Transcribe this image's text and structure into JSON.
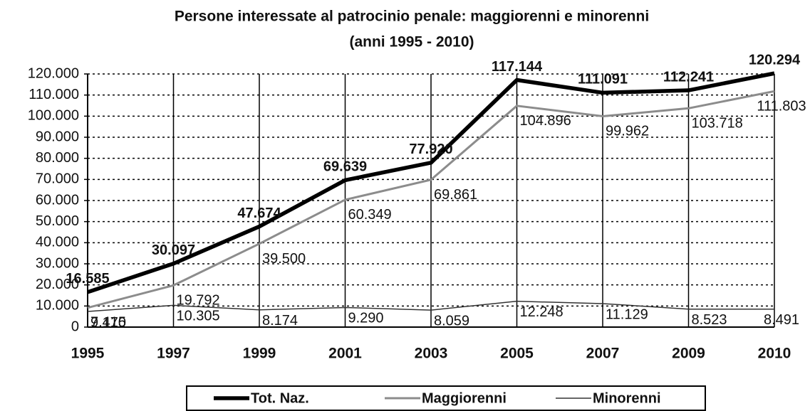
{
  "chart_data": {
    "type": "line",
    "title": "Persone interessate al patrocinio penale: maggiorenni e minorenni",
    "subtitle": "(anni 1995 - 2010)",
    "categories": [
      "1995",
      "1997",
      "1999",
      "2001",
      "2003",
      "2005",
      "2007",
      "2009",
      "2010"
    ],
    "series": [
      {
        "name": "Tot. Naz.",
        "color": "#000000",
        "values": [
          16585,
          30097,
          47674,
          69639,
          77920,
          117144,
          111091,
          112241,
          120294
        ],
        "value_labels": [
          "16.585",
          "30.097",
          "47.674",
          "69.639",
          "77.920",
          "117.144",
          "111.091",
          "112.241",
          "120.294"
        ]
      },
      {
        "name": "Maggiorenni",
        "color": "#8c8c8c",
        "values": [
          9170,
          19792,
          39500,
          60349,
          69861,
          104896,
          99962,
          103718,
          111803
        ],
        "value_labels": [
          "9.170",
          "19.792",
          "39.500",
          "60.349",
          "69.861",
          "104.896",
          "99.962",
          "103.718",
          "111.803"
        ]
      },
      {
        "name": "Minorenni",
        "color": "#333333",
        "values": [
          7415,
          10305,
          8174,
          9290,
          8059,
          12248,
          11129,
          8523,
          8491
        ],
        "value_labels": [
          "7.415",
          "10.305",
          "8.174",
          "9.290",
          "8.059",
          "12.248",
          "11.129",
          "8.523",
          "8.491"
        ]
      }
    ],
    "ylim": [
      0,
      120000
    ],
    "yticks": [
      0,
      {
        "value": 10000,
        "label": "10.000"
      },
      {
        "value": 20000,
        "label": "20.000"
      },
      {
        "value": 30000,
        "label": "30.000"
      },
      {
        "value": 40000,
        "label": "40.000"
      },
      {
        "value": 50000,
        "label": "50.000"
      },
      {
        "value": 60000,
        "label": "60.000"
      },
      {
        "value": 70000,
        "label": "70.000"
      },
      {
        "value": 80000,
        "label": "80.000"
      },
      {
        "value": 90000,
        "label": "90.000"
      },
      {
        "value": 100000,
        "label": "100.000"
      },
      {
        "value": 110000,
        "label": "110.000"
      },
      {
        "value": 120000,
        "label": "120.000"
      }
    ],
    "grid": true
  }
}
